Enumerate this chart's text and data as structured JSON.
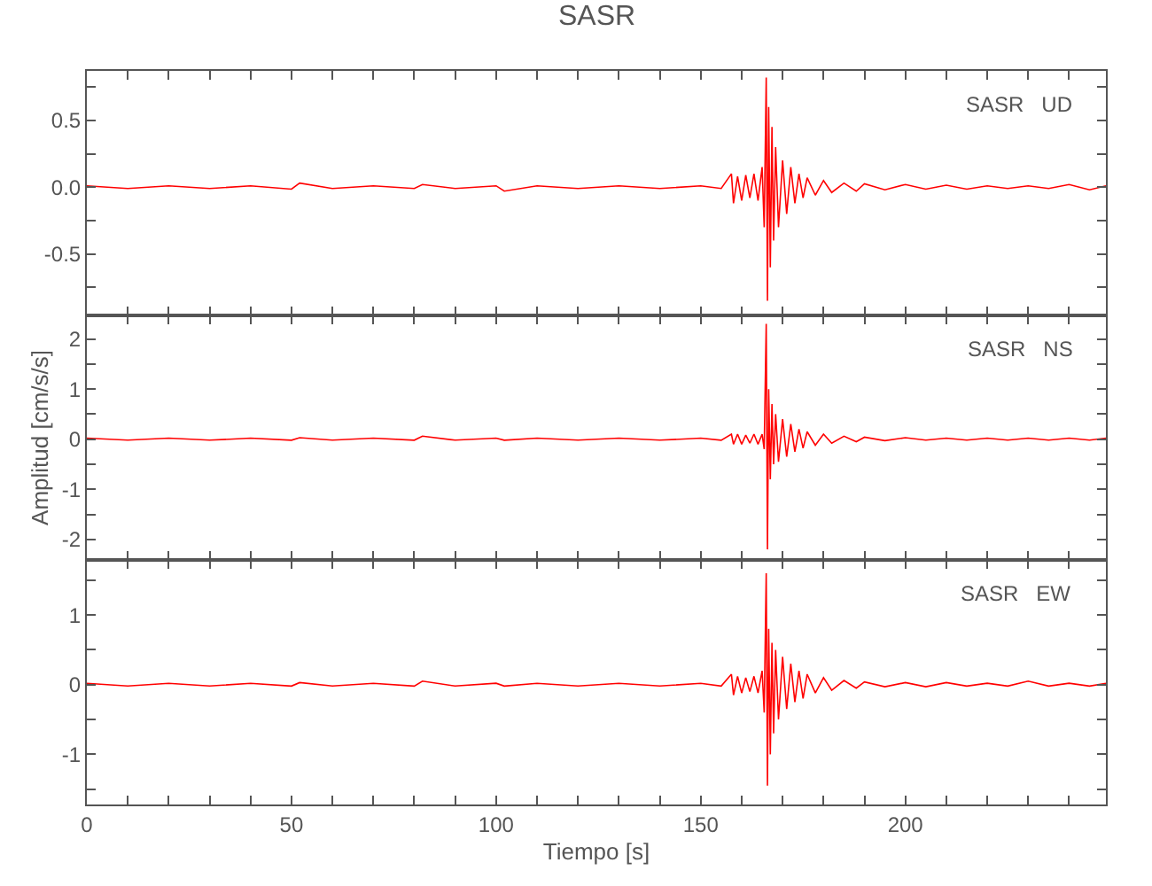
{
  "chart_data": [
    {
      "type": "line",
      "title": "SASR",
      "annotations": [
        "SASR   UD"
      ],
      "tick_labels": "y",
      "x": [
        0,
        10,
        20,
        30,
        40,
        50,
        52,
        60,
        70,
        80,
        82,
        90,
        100,
        102,
        110,
        120,
        130,
        140,
        150,
        155,
        157.5,
        158,
        159,
        160,
        161,
        162,
        163,
        164,
        165,
        165.5,
        166,
        166.3,
        166.6,
        167,
        167.4,
        167.8,
        168.3,
        169,
        170,
        171,
        172,
        173,
        174,
        175,
        176,
        178,
        180,
        182,
        185,
        188,
        190,
        195,
        200,
        205,
        210,
        215,
        220,
        225,
        230,
        235,
        240,
        245,
        249
      ],
      "series": [
        {
          "color": "#ff0000",
          "values": [
            0.01,
            -0.01,
            0.01,
            -0.01,
            0.01,
            -0.015,
            0.03,
            -0.01,
            0.01,
            -0.01,
            0.02,
            -0.01,
            0.01,
            -0.03,
            0.01,
            -0.01,
            0.01,
            -0.01,
            0.01,
            -0.01,
            0.1,
            -0.12,
            0.08,
            -0.1,
            0.09,
            -0.08,
            0.1,
            -0.1,
            0.15,
            -0.3,
            0.82,
            -0.85,
            0.6,
            -0.6,
            0.45,
            -0.4,
            0.3,
            -0.3,
            0.2,
            -0.2,
            0.15,
            -0.12,
            0.1,
            -0.08,
            0.07,
            -0.06,
            0.05,
            -0.04,
            0.03,
            -0.03,
            0.025,
            -0.02,
            0.02,
            -0.015,
            0.015,
            -0.015,
            0.01,
            -0.01,
            0.01,
            -0.01,
            0.02,
            -0.02,
            0.01
          ]
        }
      ],
      "xlim": [
        0,
        249
      ],
      "xticks": [
        0,
        {
          "value": 10,
          "label": null
        },
        {
          "value": 20,
          "label": null
        },
        {
          "value": 30,
          "label": null
        },
        {
          "value": 40,
          "label": null
        },
        50,
        {
          "value": 60,
          "label": null
        },
        {
          "value": 70,
          "label": null
        },
        {
          "value": 80,
          "label": null
        },
        {
          "value": 90,
          "label": null
        },
        100,
        {
          "value": 110,
          "label": null
        },
        {
          "value": 120,
          "label": null
        },
        {
          "value": 130,
          "label": null
        },
        {
          "value": 140,
          "label": null
        },
        150,
        {
          "value": 160,
          "label": null
        },
        {
          "value": 170,
          "label": null
        },
        {
          "value": 180,
          "label": null
        },
        {
          "value": 190,
          "label": null
        },
        200,
        {
          "value": 210,
          "label": null
        },
        {
          "value": 220,
          "label": null
        },
        {
          "value": 230,
          "label": null
        },
        {
          "value": 240,
          "label": null
        }
      ],
      "ylim": [
        -0.96,
        0.87
      ],
      "yticks": [
        {
          "value": -0.75,
          "label": null
        },
        -0.5,
        {
          "value": -0.25,
          "label": null
        },
        {
          "value": 0,
          "label": "0.0"
        },
        {
          "value": 0.25,
          "label": null
        },
        0.5,
        {
          "value": 0.75,
          "label": null
        }
      ]
    },
    {
      "type": "line",
      "ylabel": "Amplitud [cm/s/s]",
      "annotations": [
        "SASR   NS"
      ],
      "tick_labels": "y",
      "x": [
        0,
        10,
        20,
        30,
        40,
        50,
        52,
        60,
        70,
        80,
        82,
        90,
        100,
        102,
        110,
        120,
        130,
        140,
        150,
        155,
        157.5,
        158,
        159,
        160,
        161,
        162,
        163,
        164,
        165,
        165.5,
        166,
        166.3,
        166.6,
        167,
        167.4,
        167.8,
        168.3,
        169,
        170,
        171,
        172,
        173,
        174,
        175,
        176,
        178,
        180,
        182,
        185,
        188,
        190,
        195,
        200,
        205,
        210,
        215,
        220,
        225,
        230,
        235,
        240,
        245,
        249
      ],
      "series": [
        {
          "color": "#ff0000",
          "values": [
            0.02,
            -0.02,
            0.02,
            -0.02,
            0.02,
            -0.02,
            0.03,
            -0.02,
            0.02,
            -0.02,
            0.06,
            -0.02,
            0.02,
            -0.02,
            0.02,
            -0.02,
            0.02,
            -0.02,
            0.02,
            -0.02,
            0.1,
            -0.1,
            0.1,
            -0.1,
            0.08,
            -0.08,
            0.1,
            -0.1,
            0.1,
            -0.2,
            2.3,
            -2.2,
            1.0,
            -0.8,
            0.7,
            -0.5,
            0.5,
            -0.45,
            0.4,
            -0.35,
            0.3,
            -0.25,
            0.2,
            -0.18,
            0.15,
            -0.12,
            0.1,
            -0.08,
            0.06,
            -0.05,
            0.04,
            -0.03,
            0.03,
            -0.02,
            0.02,
            -0.02,
            0.02,
            -0.02,
            0.02,
            -0.02,
            0.02,
            -0.02,
            0.02
          ]
        }
      ],
      "xlim": [
        0,
        249
      ],
      "xticks": [
        0,
        {
          "value": 10,
          "label": null
        },
        {
          "value": 20,
          "label": null
        },
        {
          "value": 30,
          "label": null
        },
        {
          "value": 40,
          "label": null
        },
        50,
        {
          "value": 60,
          "label": null
        },
        {
          "value": 70,
          "label": null
        },
        {
          "value": 80,
          "label": null
        },
        {
          "value": 90,
          "label": null
        },
        100,
        {
          "value": 110,
          "label": null
        },
        {
          "value": 120,
          "label": null
        },
        {
          "value": 130,
          "label": null
        },
        {
          "value": 140,
          "label": null
        },
        150,
        {
          "value": 160,
          "label": null
        },
        {
          "value": 170,
          "label": null
        },
        {
          "value": 180,
          "label": null
        },
        {
          "value": 190,
          "label": null
        },
        200,
        {
          "value": 210,
          "label": null
        },
        {
          "value": 220,
          "label": null
        },
        {
          "value": 230,
          "label": null
        },
        {
          "value": 240,
          "label": null
        }
      ],
      "ylim": [
        -2.41,
        2.47
      ],
      "yticks": [
        -2,
        {
          "value": -1.5,
          "label": null
        },
        -1,
        {
          "value": -0.5,
          "label": null
        },
        0,
        {
          "value": 0.5,
          "label": null
        },
        1,
        {
          "value": 1.5,
          "label": null
        },
        2
      ]
    },
    {
      "type": "line",
      "xlabel": "Tiempo [s]",
      "annotations": [
        "SASR   EW"
      ],
      "x": [
        0,
        10,
        20,
        30,
        40,
        50,
        52,
        60,
        70,
        80,
        82,
        90,
        100,
        102,
        110,
        120,
        130,
        140,
        150,
        155,
        157.5,
        158,
        159,
        160,
        161,
        162,
        163,
        164,
        165,
        165.5,
        166,
        166.3,
        166.6,
        167,
        167.4,
        167.8,
        168.3,
        169,
        170,
        171,
        172,
        173,
        174,
        175,
        176,
        178,
        180,
        182,
        185,
        188,
        190,
        195,
        200,
        205,
        210,
        215,
        220,
        225,
        230,
        235,
        240,
        245,
        249
      ],
      "series": [
        {
          "color": "#ff0000",
          "values": [
            0.02,
            -0.02,
            0.02,
            -0.02,
            0.02,
            -0.02,
            0.03,
            -0.02,
            0.02,
            -0.02,
            0.05,
            -0.02,
            0.02,
            -0.02,
            0.02,
            -0.02,
            0.02,
            -0.02,
            0.02,
            -0.02,
            0.15,
            -0.15,
            0.12,
            -0.12,
            0.1,
            -0.1,
            0.12,
            -0.12,
            0.2,
            -0.4,
            1.6,
            -1.45,
            0.8,
            -1.0,
            0.6,
            -0.7,
            0.5,
            -0.5,
            0.4,
            -0.35,
            0.3,
            -0.25,
            0.2,
            -0.2,
            0.15,
            -0.12,
            0.1,
            -0.08,
            0.06,
            -0.05,
            0.04,
            -0.03,
            0.03,
            -0.03,
            0.03,
            -0.02,
            0.02,
            -0.02,
            0.05,
            -0.02,
            0.02,
            -0.02,
            0.02
          ]
        }
      ],
      "xlim": [
        0,
        249
      ],
      "xticks": [
        0,
        {
          "value": 10,
          "label": null
        },
        {
          "value": 20,
          "label": null
        },
        {
          "value": 30,
          "label": null
        },
        {
          "value": 40,
          "label": null
        },
        50,
        {
          "value": 60,
          "label": null
        },
        {
          "value": 70,
          "label": null
        },
        {
          "value": 80,
          "label": null
        },
        {
          "value": 90,
          "label": null
        },
        100,
        {
          "value": 110,
          "label": null
        },
        {
          "value": 120,
          "label": null
        },
        {
          "value": 130,
          "label": null
        },
        {
          "value": 140,
          "label": null
        },
        150,
        {
          "value": 160,
          "label": null
        },
        {
          "value": 170,
          "label": null
        },
        {
          "value": 180,
          "label": null
        },
        {
          "value": 190,
          "label": null
        },
        200,
        {
          "value": 210,
          "label": null
        },
        {
          "value": 220,
          "label": null
        },
        {
          "value": 230,
          "label": null
        },
        {
          "value": 240,
          "label": null
        }
      ],
      "ylim": [
        -1.72,
        1.79
      ],
      "yticks": [
        {
          "value": -1.5,
          "label": null
        },
        -1,
        {
          "value": -0.5,
          "label": null
        },
        0,
        {
          "value": 0.5,
          "label": null
        },
        1,
        {
          "value": 1.5,
          "label": null
        }
      ]
    }
  ]
}
